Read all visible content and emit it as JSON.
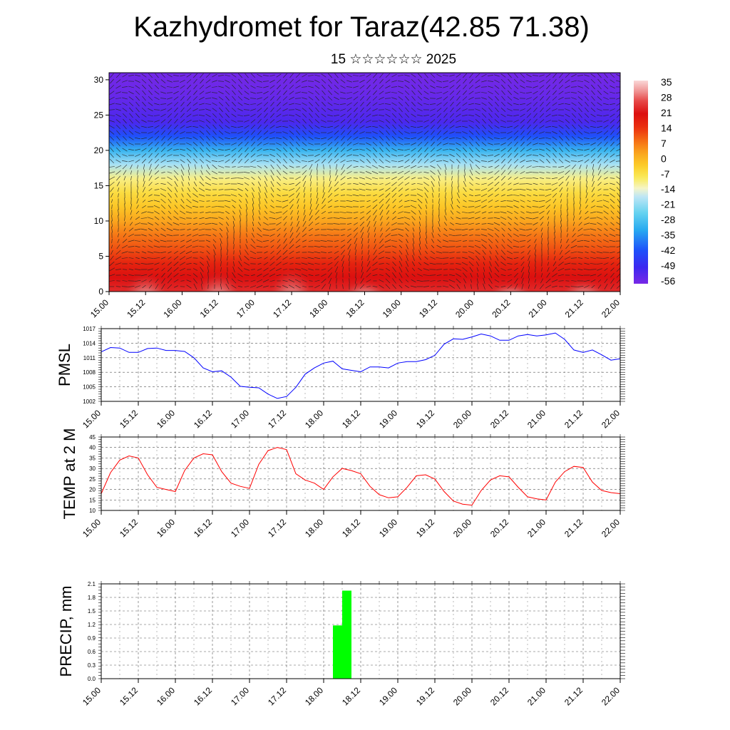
{
  "header": {
    "title": "Kazhydromet for Taraz(42.85 71.38)",
    "subtitle": "15 ☆☆☆☆☆☆ 2025"
  },
  "x_tick_labels": [
    "15.00",
    "15.12",
    "16.00",
    "16.12",
    "17.00",
    "17.12",
    "18.00",
    "18.12",
    "19.00",
    "19.12",
    "20.00",
    "20.12",
    "21.00",
    "21.12",
    "22.00"
  ],
  "chart_data": [
    {
      "type": "heatmap",
      "title": "",
      "xlabel": "",
      "ylabel": "",
      "x": [
        "15.00",
        "15.12",
        "16.00",
        "16.12",
        "17.00",
        "17.12",
        "18.00",
        "18.12",
        "19.00",
        "19.12",
        "20.00",
        "20.12",
        "21.00",
        "21.12",
        "22.00"
      ],
      "ylim": [
        0,
        31
      ],
      "yticks": [
        0,
        5,
        10,
        15,
        20,
        25,
        30
      ],
      "colorbar": {
        "labels": [
          "35",
          "28",
          "21",
          "14",
          "7",
          "0",
          "-7",
          "-14",
          "-21",
          "-28",
          "-35",
          "-42",
          "-49",
          "-56"
        ],
        "range": [
          -60,
          38
        ]
      },
      "temperature_profile": {
        "levels": [
          0,
          2,
          4,
          6,
          8,
          10,
          12,
          14,
          16,
          18,
          20,
          22,
          24,
          26,
          28,
          30,
          31
        ],
        "values": [
          25,
          22,
          18,
          12,
          8,
          3,
          -2,
          -6,
          -11,
          -20,
          -32,
          -44,
          -54,
          -56,
          -58,
          -59,
          -59
        ]
      },
      "surface_maxima": [
        {
          "time": "15.12",
          "value": 33
        },
        {
          "time": "16.12",
          "value": 34
        },
        {
          "time": "17.12",
          "value": 37
        },
        {
          "time": "18.12",
          "value": 27
        },
        {
          "time": "20.12",
          "value": 25
        },
        {
          "time": "21.12",
          "value": 28
        }
      ],
      "overlay": "wind vectors"
    },
    {
      "type": "line",
      "ylabel": "PMSL",
      "ylim": [
        1002,
        1017
      ],
      "yticks": [
        "1002",
        "1005",
        "1008",
        "1011",
        "1014",
        "1017"
      ],
      "x": [
        0,
        3,
        6,
        9,
        12,
        15,
        18,
        21,
        24,
        27,
        30,
        33,
        36,
        39,
        42,
        45,
        48,
        51,
        54,
        57,
        60,
        63,
        66,
        69,
        72,
        75,
        78,
        81,
        84,
        87,
        90,
        93,
        96,
        99,
        102,
        105,
        108,
        111,
        114,
        117,
        120,
        123,
        126,
        129,
        132,
        135,
        138,
        141,
        144,
        147,
        150,
        153,
        156,
        159,
        162,
        165,
        168
      ],
      "series": [
        {
          "color": "#0000ff",
          "values": [
            1012.2,
            1013.1,
            1013.0,
            1012.1,
            1012.1,
            1012.9,
            1013.0,
            1012.5,
            1012.5,
            1012.3,
            1011.0,
            1008.9,
            1008.1,
            1008.3,
            1007.0,
            1005.1,
            1004.9,
            1004.8,
            1003.5,
            1002.6,
            1003.0,
            1004.9,
            1007.6,
            1008.9,
            1009.9,
            1010.3,
            1008.7,
            1008.4,
            1008.1,
            1009.1,
            1009.1,
            1008.9,
            1009.9,
            1010.2,
            1010.2,
            1010.6,
            1011.5,
            1013.8,
            1014.9,
            1014.8,
            1015.3,
            1015.9,
            1015.5,
            1014.6,
            1014.6,
            1015.5,
            1015.8,
            1015.5,
            1015.7,
            1016.1,
            1014.8,
            1012.6,
            1012.1,
            1012.6,
            1011.6,
            1010.5,
            1010.8
          ]
        }
      ]
    },
    {
      "type": "line",
      "ylabel": "TEMP at 2 M",
      "ylim": [
        10,
        45
      ],
      "yticks": [
        "10",
        "15",
        "20",
        "25",
        "30",
        "35",
        "40",
        "45"
      ],
      "x": [
        0,
        3,
        6,
        9,
        12,
        15,
        18,
        21,
        24,
        27,
        30,
        33,
        36,
        39,
        42,
        45,
        48,
        51,
        54,
        57,
        60,
        63,
        66,
        69,
        72,
        75,
        78,
        81,
        84,
        87,
        90,
        93,
        96,
        99,
        102,
        105,
        108,
        111,
        114,
        117,
        120,
        123,
        126,
        129,
        132,
        135,
        138,
        141,
        144,
        147,
        150,
        153,
        156,
        159,
        162,
        165,
        168
      ],
      "series": [
        {
          "color": "#ff0000",
          "values": [
            18,
            28,
            34,
            36,
            35,
            27,
            21,
            20,
            19,
            29,
            35,
            37,
            36.5,
            28.5,
            23,
            21.5,
            20.5,
            32,
            38.5,
            40,
            39,
            27.5,
            24.5,
            23,
            20,
            26,
            30,
            29,
            27.5,
            21.5,
            17.5,
            16,
            16.5,
            21,
            26.5,
            27,
            25,
            19,
            14.5,
            13,
            12.5,
            19.5,
            24.5,
            26.5,
            26,
            21,
            16.5,
            15.5,
            15,
            23.5,
            28.5,
            31,
            30.5,
            23.5,
            19.5,
            18.5,
            18
          ]
        }
      ]
    },
    {
      "type": "bar",
      "ylabel": "PRECIP, mm",
      "ylim": [
        0,
        2.1
      ],
      "yticks": [
        "0.0",
        "0.3",
        "0.6",
        "0.9",
        "1.2",
        "1.5",
        "1.8",
        "2.1"
      ],
      "bars": [
        {
          "start": 75,
          "end": 78,
          "value": 1.18
        },
        {
          "start": 78,
          "end": 81,
          "value": 1.95
        }
      ],
      "color": "#00ff00"
    }
  ]
}
